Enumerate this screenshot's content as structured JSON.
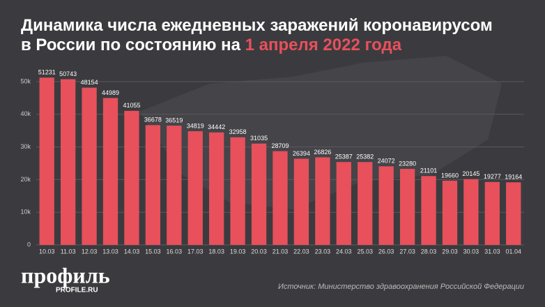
{
  "chart_data": {
    "type": "bar",
    "title": [
      "Динамика числа ежедневных заражений коронавирусом",
      "в России по состоянию на"
    ],
    "title_highlight": "1 апреля 2022 года",
    "categories": [
      "10.03",
      "11.03",
      "12.03",
      "13.03",
      "14.03",
      "15.03",
      "16.03",
      "17.03",
      "18.03",
      "19.03",
      "20.03",
      "21.03",
      "22.03",
      "23.03",
      "24.03",
      "25.03",
      "26.03",
      "27.03",
      "28.03",
      "29.03",
      "30.03",
      "31.03",
      "01.04"
    ],
    "values": [
      51231,
      50743,
      48154,
      44989,
      41055,
      36678,
      36519,
      34819,
      34442,
      32958,
      31035,
      28709,
      26394,
      26826,
      25387,
      25382,
      24072,
      23280,
      21101,
      19660,
      20145,
      19277,
      19164
    ],
    "color": "#e8505b",
    "ylim": [
      0,
      55000
    ],
    "yticks": [
      0,
      {
        "value": 10000,
        "label": "10k"
      },
      {
        "value": 20000,
        "label": "20k"
      },
      {
        "value": 30000,
        "label": "30k"
      },
      {
        "value": 40000,
        "label": "40k"
      },
      {
        "value": 50000,
        "label": "50k"
      }
    ],
    "grid": true,
    "logo": {
      "name": "профиль",
      "site": "PROFILE.RU"
    },
    "source": "Источник: Министерство здравоохранения Российской Федерации"
  }
}
